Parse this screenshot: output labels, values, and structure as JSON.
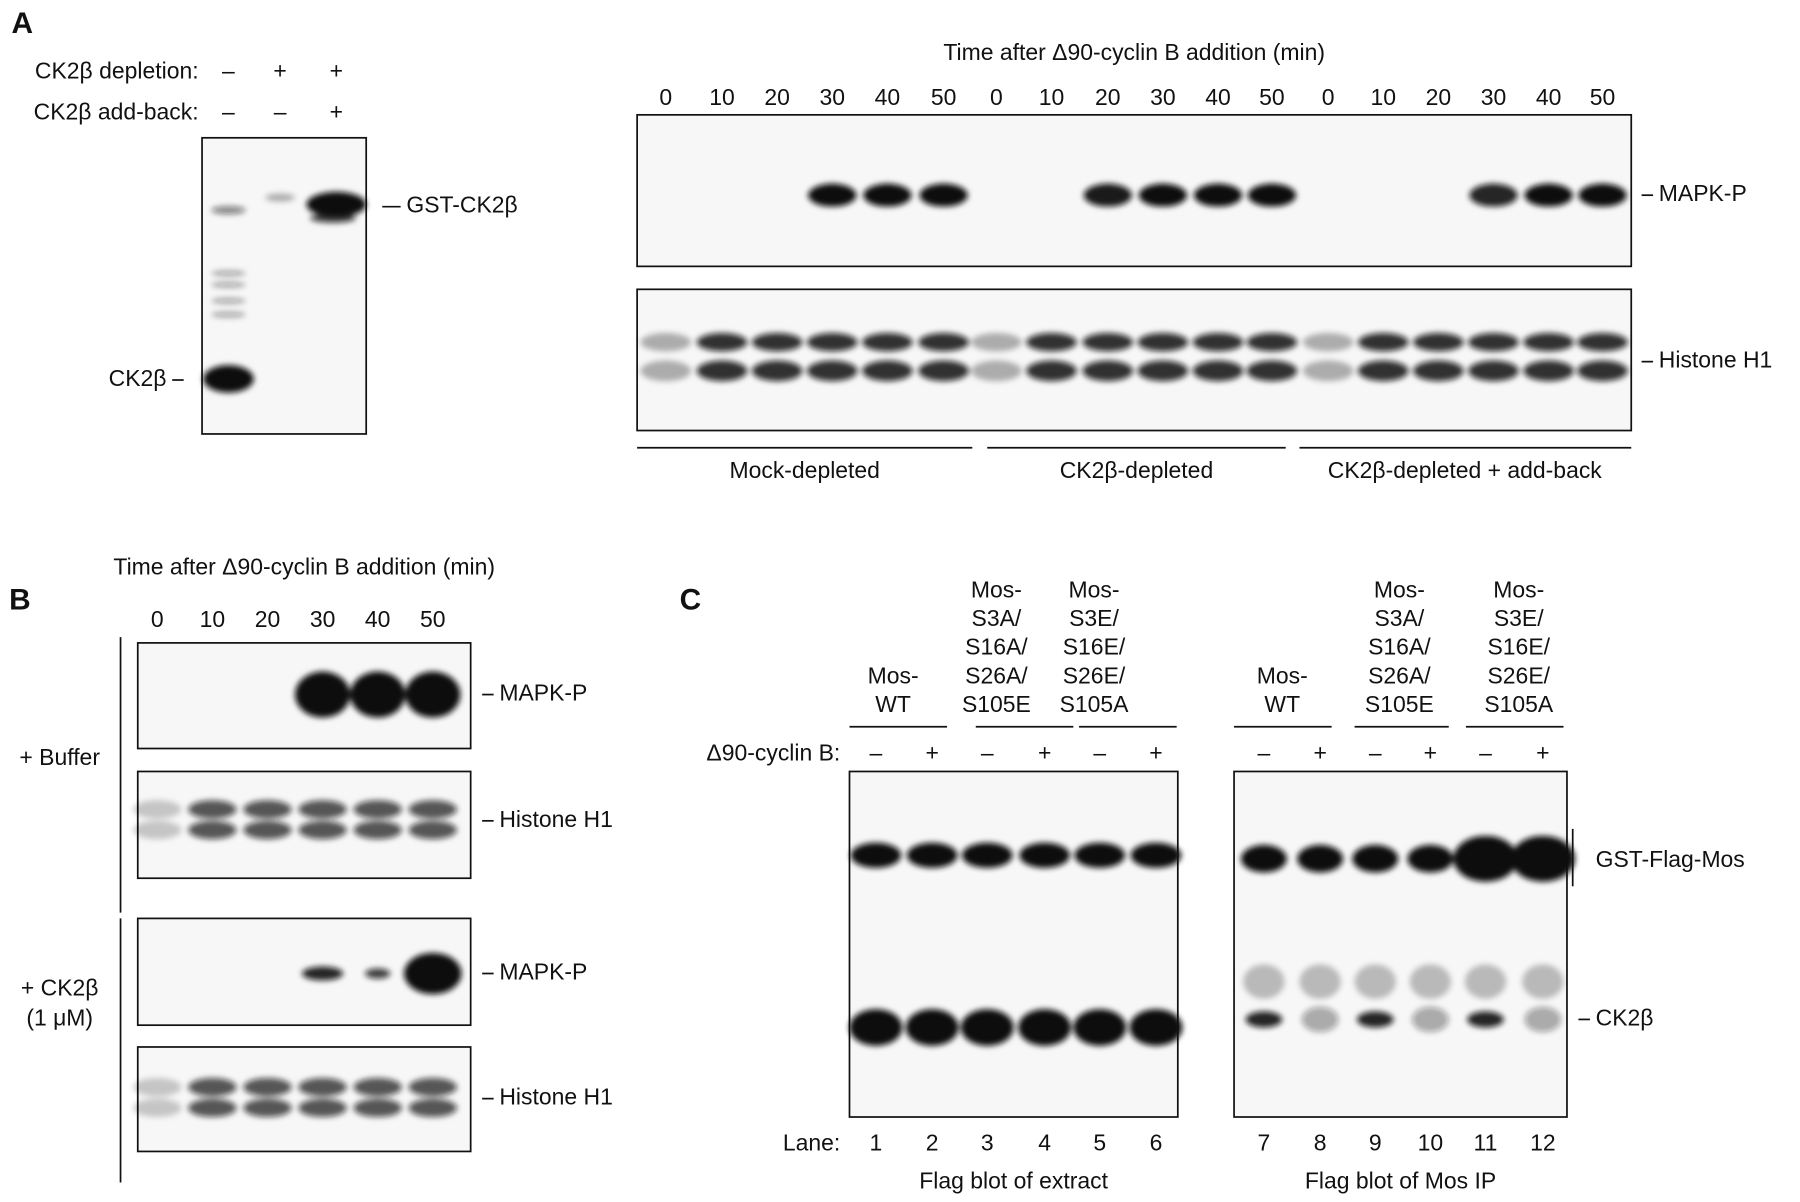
{
  "panel_a": {
    "label": "A",
    "rows": [
      {
        "label": "CK2β depletion:",
        "signs": [
          "–",
          "+",
          "+"
        ]
      },
      {
        "label": "CK2β add-back:",
        "signs": [
          "–",
          "–",
          "+"
        ]
      }
    ],
    "gst_label": "GST-CK2β",
    "ck2b_label": "CK2β",
    "time_title": "Time after Δ90-cyclin B addition (min)",
    "times": [
      "0",
      "10",
      "20",
      "30",
      "40",
      "50",
      "0",
      "10",
      "20",
      "30",
      "40",
      "50",
      "0",
      "10",
      "20",
      "30",
      "40",
      "50"
    ],
    "mapk_label": "MAPK-P",
    "histone_label": "Histone H1",
    "groups": [
      "Mock-depleted",
      "CK2β-depleted",
      "CK2β-depleted + add-back"
    ]
  },
  "panel_b": {
    "label": "B",
    "time_title": "Time after Δ90-cyclin B addition (min)",
    "times": [
      "0",
      "10",
      "20",
      "30",
      "40",
      "50"
    ],
    "conditions": [
      {
        "lines": [
          "+ Buffer"
        ],
        "mapk_label": "MAPK-P",
        "histone_label": "Histone H1"
      },
      {
        "lines": [
          "+ CK2β",
          "(1 μM)"
        ],
        "mapk_label": "MAPK-P",
        "histone_label": "Histone H1"
      }
    ]
  },
  "panel_c": {
    "label": "C",
    "constructs": [
      [
        "Mos-",
        "WT"
      ],
      [
        "Mos-",
        "S3A/",
        "S16A/",
        "S26A/",
        "S105E"
      ],
      [
        "Mos-",
        "S3E/",
        "S16E/",
        "S26E/",
        "S105A"
      ],
      [
        "Mos-",
        "WT"
      ],
      [
        "Mos-",
        "S3A/",
        "S16A/",
        "S26A/",
        "S105E"
      ],
      [
        "Mos-",
        "S3E/",
        "S16E/",
        "S26E/",
        "S105A"
      ]
    ],
    "cyclin_label": "Δ90-cyclin B:",
    "signs": [
      "–",
      "+",
      "–",
      "+",
      "–",
      "+",
      "–",
      "+",
      "–",
      "+",
      "–",
      "+"
    ],
    "lane_label": "Lane:",
    "lanes": [
      1,
      2,
      3,
      4,
      5,
      6,
      7,
      8,
      9,
      10,
      11,
      12
    ],
    "captions": [
      "Flag blot of extract",
      "Flag blot of Mos IP"
    ],
    "gst_label": "GST-Flag-Mos",
    "ck2b_label": "CK2β"
  }
}
